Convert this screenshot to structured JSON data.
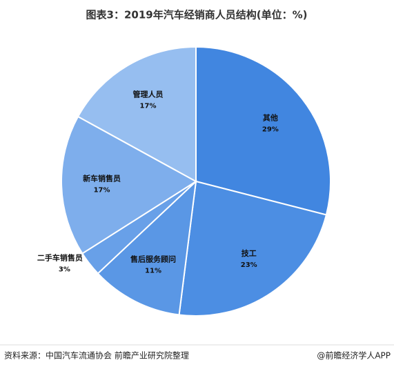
{
  "chart_data": {
    "type": "pie",
    "title": "图表3：2019年汽车经销商人员结构(单位：%)",
    "categories": [
      "其他",
      "技工",
      "售后服务顾问",
      "二手车销售员",
      "新车销售员",
      "管理人员"
    ],
    "values": [
      29,
      23,
      11,
      3,
      17,
      17
    ],
    "value_labels": [
      "29%",
      "23%",
      "11%",
      "3%",
      "17%",
      "17%"
    ],
    "colors": [
      "#4186e0",
      "#4c8ee3",
      "#5a97e5",
      "#68a0e8",
      "#7eaeec",
      "#96bef0"
    ],
    "source": "资料来源：中国汽车流通协会 前瞻产业研究院整理",
    "credit": "@前瞻经济学人APP"
  }
}
